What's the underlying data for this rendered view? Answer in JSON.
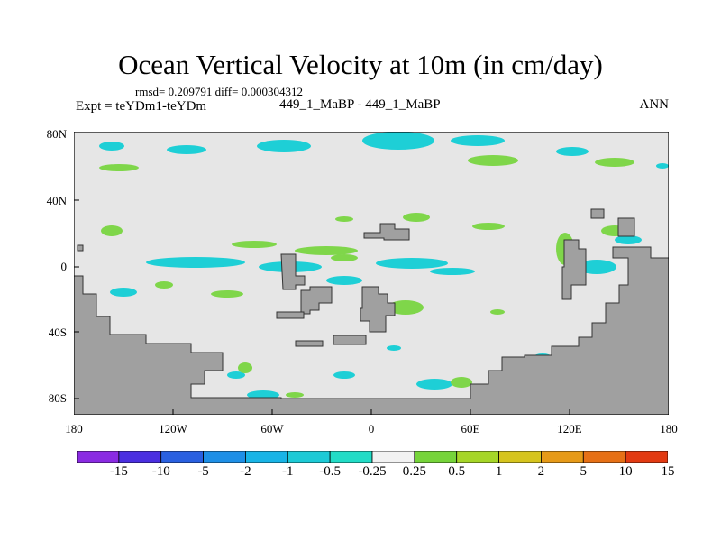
{
  "title": "Ocean Vertical Velocity at 10m (in cm/day)",
  "stats_line": "rmsd= 0.209791 diff= 0.000304312",
  "experiment": "Expt = teYDm1-teYDm",
  "case_names": "449_1_MaBP - 449_1_MaBP",
  "season": "ANN",
  "colors": {
    "ocean_background": "#e6e6e6",
    "land": "#a0a0a0",
    "cyan": "#1ecfd6",
    "green": "#7fd64a"
  },
  "map": {
    "lat_labels": [
      "80N",
      "40N",
      "0",
      "40S",
      "80S"
    ],
    "lon_labels": [
      "180",
      "120W",
      "60W",
      "0",
      "60E",
      "120E",
      "180"
    ]
  },
  "colorbar": {
    "labels": [
      "-15",
      "-10",
      "-5",
      "-2",
      "-1",
      "-0.5",
      "-0.25",
      "0.25",
      "0.5",
      "1",
      "2",
      "5",
      "10",
      "15"
    ],
    "colors": [
      "#8a2be2",
      "#4a2fe0",
      "#2a60e0",
      "#1e8fe6",
      "#18b4e6",
      "#1ccad6",
      "#22dcc6",
      "#f2f2f2",
      "#76d43a",
      "#a6d628",
      "#d6c41e",
      "#e69a18",
      "#e67016",
      "#e23a12"
    ]
  }
}
